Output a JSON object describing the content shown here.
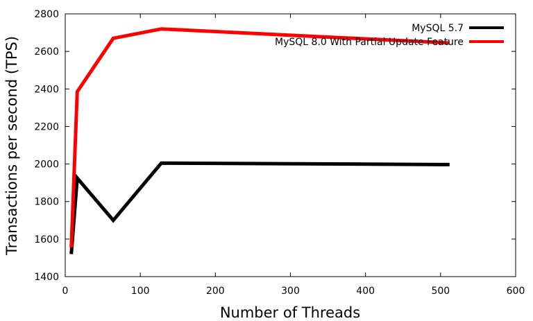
{
  "chart_data": {
    "type": "line",
    "xlabel": "Number of Threads",
    "ylabel": "Transactions per second (TPS)",
    "xlim": [
      0,
      600
    ],
    "ylim": [
      1400,
      2800
    ],
    "x_ticks": [
      0,
      100,
      200,
      300,
      400,
      500,
      600
    ],
    "y_ticks": [
      1400,
      1600,
      1800,
      2000,
      2200,
      2400,
      2600,
      2800
    ],
    "grid": false,
    "legend_position": "top-right",
    "series": [
      {
        "name": "MySQL 5.7",
        "color": "#000000",
        "x": [
          8,
          16,
          64,
          128,
          512
        ],
        "y": [
          1520,
          1925,
          1700,
          2005,
          1997
        ]
      },
      {
        "name": "MySQL 8.0 With Partial Update Feature",
        "color": "#ff0000",
        "x": [
          8,
          16,
          64,
          128,
          512
        ],
        "y": [
          1555,
          2385,
          2670,
          2720,
          2645
        ]
      }
    ]
  }
}
